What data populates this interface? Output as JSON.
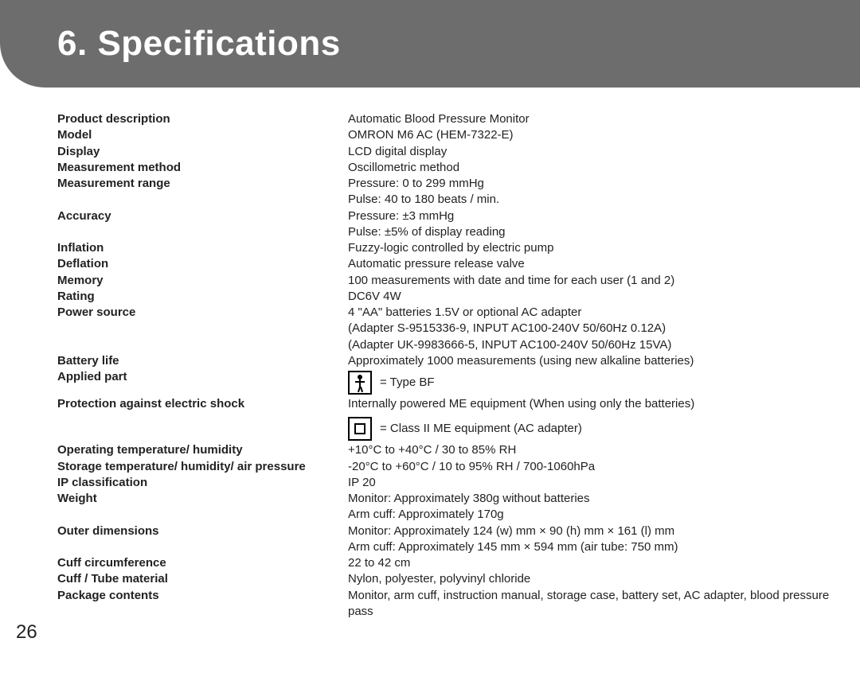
{
  "header": {
    "section_number": "6.",
    "title": "Specifications"
  },
  "page_number": "26",
  "specs": [
    {
      "label": "Product description",
      "value": "Automatic Blood Pressure Monitor"
    },
    {
      "label": "Model",
      "value": "OMRON M6 AC (HEM-7322-E)"
    },
    {
      "label": "Display",
      "value": "LCD digital display"
    },
    {
      "label": "Measurement method",
      "value": "Oscillometric method"
    },
    {
      "label": "Measurement range",
      "value": "Pressure: 0 to 299 mmHg",
      "value2": "Pulse: 40 to 180 beats / min."
    },
    {
      "label": "Accuracy",
      "value": "Pressure: ±3 mmHg",
      "value2": "Pulse: ±5% of display reading"
    },
    {
      "label": "Inflation",
      "value": "Fuzzy-logic controlled by electric pump"
    },
    {
      "label": "Deflation",
      "value": "Automatic pressure release valve"
    },
    {
      "label": "Memory",
      "value": "100 measurements with date and time for each user (1 and 2)"
    },
    {
      "label": "Rating",
      "value": "DC6V 4W"
    },
    {
      "label": "Power source",
      "value": "4 \"AA\" batteries 1.5V or optional AC adapter",
      "value2": "(Adapter S-9515336-9, INPUT AC100-240V 50/60Hz 0.12A)",
      "value3": "(Adapter UK-9983666-5, INPUT AC100-240V 50/60Hz 15VA)"
    },
    {
      "label": "Battery life",
      "value": "Approximately 1000 measurements (using new alkaline batteries)"
    },
    {
      "label": "Applied part",
      "icon": "type-bf",
      "icon_text": "= Type BF"
    },
    {
      "label": "Protection against electric shock",
      "value": "Internally powered ME equipment (When using only the batteries)",
      "icon": "class-ii",
      "icon_text": "= Class II ME equipment (AC adapter)"
    },
    {
      "label": "Operating temperature/ humidity",
      "value": "+10°C to +40°C / 30 to 85% RH"
    },
    {
      "label": "Storage temperature/ humidity/ air pressure",
      "value": "-20°C to +60°C / 10 to 95% RH / 700-1060hPa"
    },
    {
      "label": "IP classification",
      "value": "IP 20"
    },
    {
      "label": "Weight",
      "value": "Monitor: Approximately 380g without batteries",
      "value2": "Arm cuff: Approximately 170g"
    },
    {
      "label": "Outer dimensions",
      "value": "Monitor: Approximately 124 (w) mm × 90 (h) mm × 161 (l) mm",
      "value2": "Arm cuff: Approximately 145 mm × 594 mm (air tube: 750 mm)"
    },
    {
      "label": "Cuff circumference",
      "value": "22 to 42 cm"
    },
    {
      "label": "Cuff / Tube material",
      "value": "Nylon, polyester, polyvinyl chloride"
    },
    {
      "label": "Package contents",
      "value": "Monitor, arm cuff, instruction manual, storage case, battery set, AC adapter, blood pressure pass"
    }
  ]
}
